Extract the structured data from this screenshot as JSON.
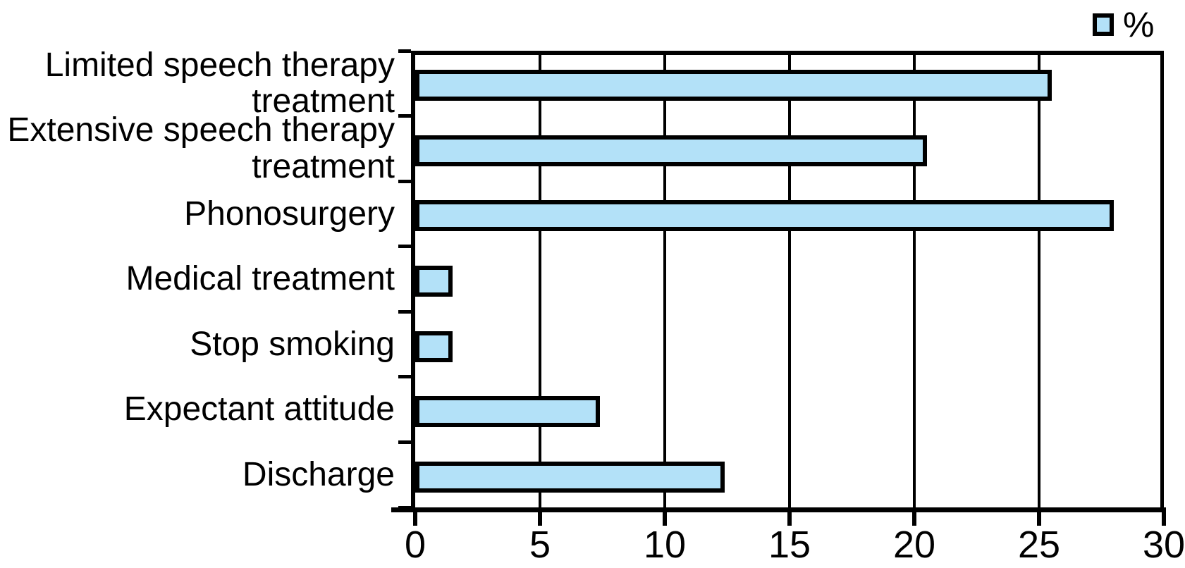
{
  "chart_data": {
    "type": "bar",
    "orientation": "horizontal",
    "title": "",
    "categories": [
      "Limited speech therapy treatment",
      "Extensive speech therapy treatment",
      "Phonosurgery",
      "Medical treatment",
      "Stop smoking",
      "Expectant attitude",
      "Discharge"
    ],
    "category_label_lines": [
      [
        "Limited speech therapy",
        "treatment"
      ],
      [
        "Extensive speech therapy",
        "treatment"
      ],
      [
        "Phonosurgery"
      ],
      [
        "Medical treatment"
      ],
      [
        "Stop smoking"
      ],
      [
        "Expectant attitude"
      ],
      [
        "Discharge"
      ]
    ],
    "series_name": "%",
    "values": [
      25.5,
      20.5,
      28,
      1.5,
      1.5,
      7.4,
      12.4
    ],
    "xlabel": "",
    "ylabel": "",
    "xlim": [
      0,
      30
    ],
    "x_ticks": [
      0,
      5,
      10,
      15,
      20,
      25,
      30
    ],
    "x_tick_labels": [
      "0",
      "5",
      "10",
      "15",
      "20",
      "25",
      "30"
    ],
    "grid": true,
    "legend": {
      "label": "%",
      "position": "top-right"
    },
    "colors": {
      "bar_fill": "#B3E1F8",
      "bar_border": "#000000",
      "axis": "#000000",
      "background": "#FFFFFF"
    }
  }
}
